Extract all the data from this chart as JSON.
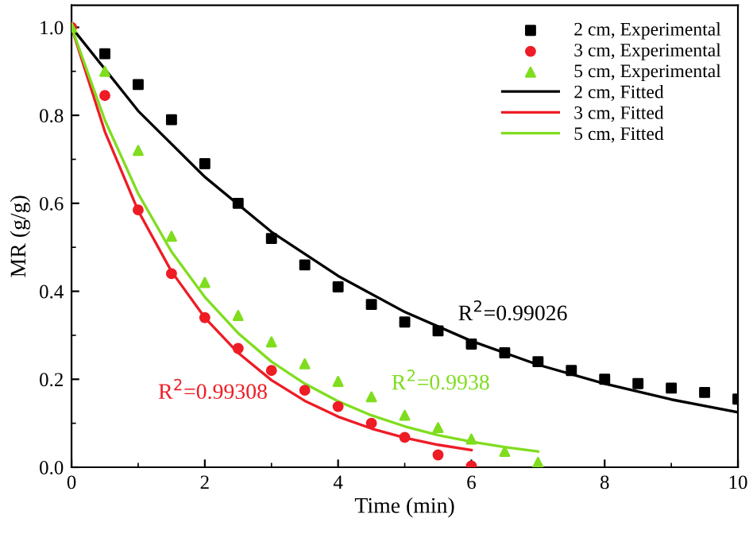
{
  "chart_data": {
    "type": "line",
    "xlabel": "Time (min)",
    "ylabel": "MR (g/g)",
    "xlim": [
      0,
      10
    ],
    "ylim": [
      0,
      1.05
    ],
    "xticks": [
      0,
      2,
      4,
      6,
      8,
      10
    ],
    "yticks": [
      {
        "value": 0,
        "label": "0.0"
      },
      0.2,
      0.4,
      0.6,
      0.8,
      {
        "value": 1,
        "label": "1.0"
      }
    ],
    "grid": false,
    "legend": "top right",
    "series": [
      {
        "name": "2 cm, Experimental",
        "type": "scatter",
        "marker": "square",
        "color": "#000000",
        "x": [
          0.5,
          1,
          1.5,
          2,
          2.5,
          3,
          3.5,
          4,
          4.5,
          5,
          5.5,
          6,
          6.5,
          7,
          7.5,
          8,
          8.5,
          9,
          9.5,
          10
        ],
        "values": [
          0.94,
          0.87,
          0.79,
          0.69,
          0.6,
          0.52,
          0.46,
          0.41,
          0.37,
          0.33,
          0.31,
          0.28,
          0.26,
          0.24,
          0.22,
          0.2,
          0.19,
          0.18,
          0.17,
          0.155
        ]
      },
      {
        "name": "3 cm, Experimental",
        "type": "scatter",
        "marker": "circle",
        "color": "#ee1c25",
        "x": [
          0,
          0.5,
          1,
          1.5,
          2,
          2.5,
          3,
          3.5,
          4,
          4.5,
          5,
          5.5,
          6
        ],
        "values": [
          1.0,
          0.845,
          0.585,
          0.44,
          0.34,
          0.27,
          0.22,
          0.175,
          0.138,
          0.1,
          0.068,
          0.028,
          0.003
        ]
      },
      {
        "name": "5 cm, Experimental",
        "type": "scatter",
        "marker": "triangle",
        "color": "#7fdd1e",
        "x": [
          0,
          0.5,
          1,
          1.5,
          2,
          2.5,
          3,
          3.5,
          4,
          4.5,
          5,
          5.5,
          6,
          6.5,
          7
        ],
        "values": [
          1.0,
          0.9,
          0.72,
          0.525,
          0.42,
          0.345,
          0.285,
          0.235,
          0.195,
          0.16,
          0.118,
          0.09,
          0.064,
          0.036,
          0.011
        ]
      },
      {
        "name": "2 cm, Fitted",
        "marker": "none",
        "color": "#000000",
        "x": [
          0,
          1,
          2,
          3,
          4,
          5,
          6,
          7,
          8,
          9,
          10
        ],
        "values": [
          1.0,
          0.81,
          0.66,
          0.535,
          0.435,
          0.353,
          0.287,
          0.233,
          0.19,
          0.154,
          0.125
        ]
      },
      {
        "name": "3 cm, Fitted",
        "marker": "none",
        "color": "#ee1c25",
        "x": [
          0,
          0.5,
          1,
          1.5,
          2,
          2.5,
          3,
          3.5,
          4,
          4.5,
          5,
          5.5,
          6
        ],
        "values": [
          1.0,
          0.763,
          0.583,
          0.445,
          0.34,
          0.26,
          0.198,
          0.151,
          0.115,
          0.088,
          0.067,
          0.051,
          0.039
        ]
      },
      {
        "name": "5 cm, Fitted",
        "marker": "none",
        "color": "#7fdd1e",
        "x": [
          0,
          0.5,
          1,
          1.5,
          2,
          2.5,
          3,
          3.5,
          4,
          4.5,
          5,
          5.5,
          6,
          6.5,
          7
        ],
        "values": [
          1.0,
          0.789,
          0.622,
          0.49,
          0.387,
          0.305,
          0.24,
          0.19,
          0.15,
          0.118,
          0.093,
          0.073,
          0.058,
          0.046,
          0.036
        ]
      }
    ],
    "annotations": [
      "R$^{2}$=0.99026",
      "R$^{2}$=0.99308",
      "R$^{2}$=0.9938"
    ]
  }
}
